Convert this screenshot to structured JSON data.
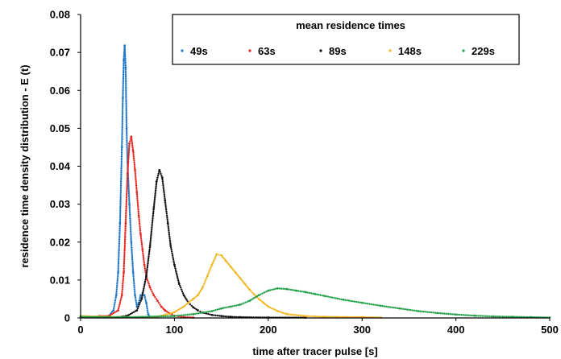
{
  "chart_data": {
    "type": "scatter",
    "title": "",
    "xlabel": "time after tracer pulse [s]",
    "ylabel": "residence time density distribution - E (t)",
    "xlim": [
      0,
      500
    ],
    "ylim": [
      0,
      0.08
    ],
    "x_ticks": [
      0,
      100,
      200,
      300,
      400,
      500
    ],
    "y_ticks": [
      0,
      0.01,
      0.02,
      0.03,
      0.04,
      0.05,
      0.06,
      0.07,
      0.08
    ],
    "x_tick_labels": [
      "0",
      "100",
      "200",
      "300",
      "400",
      "500"
    ],
    "y_tick_labels": [
      "0",
      "0.01",
      "0.02",
      "0.03",
      "0.04",
      "0.05",
      "0.06",
      "0.07",
      "0.08"
    ],
    "grid": false,
    "legend_title": "mean residence times",
    "legend_position": "top-right",
    "series": [
      {
        "name": "49s",
        "color": "#1f77c4",
        "x": [
          0,
          10,
          20,
          30,
          35,
          38,
          40,
          42,
          44,
          45,
          46,
          47,
          48,
          49,
          50,
          52,
          54,
          56,
          58,
          60,
          62,
          64,
          66,
          68,
          70,
          72,
          74
        ],
        "y": [
          0.0005,
          0.0003,
          0.0002,
          0.0005,
          0.002,
          0.006,
          0.012,
          0.025,
          0.045,
          0.058,
          0.068,
          0.0718,
          0.066,
          0.05,
          0.041,
          0.03,
          0.02,
          0.012,
          0.006,
          0.003,
          0.004,
          0.006,
          0.0065,
          0.006,
          0.004,
          0.001,
          0.0002
        ]
      },
      {
        "name": "63s",
        "color": "#e8221c",
        "x": [
          20,
          30,
          40,
          44,
          46,
          48,
          50,
          52,
          54,
          56,
          58,
          60,
          62,
          64,
          66,
          68,
          70,
          74,
          78,
          82,
          86,
          90,
          95,
          100,
          110,
          120
        ],
        "y": [
          0.0005,
          0.0005,
          0.002,
          0.006,
          0.012,
          0.025,
          0.038,
          0.046,
          0.0478,
          0.044,
          0.039,
          0.033,
          0.027,
          0.022,
          0.018,
          0.014,
          0.011,
          0.008,
          0.006,
          0.0045,
          0.003,
          0.002,
          0.0012,
          0.0006,
          0.0002,
          0.0001
        ]
      },
      {
        "name": "89s",
        "color": "#111111",
        "x": [
          40,
          50,
          60,
          65,
          70,
          74,
          78,
          81,
          84,
          87,
          90,
          93,
          96,
          100,
          105,
          110,
          115,
          120,
          125,
          130,
          140,
          150,
          160,
          170,
          200,
          240
        ],
        "y": [
          0.0002,
          0.0006,
          0.002,
          0.005,
          0.011,
          0.019,
          0.029,
          0.036,
          0.039,
          0.037,
          0.031,
          0.025,
          0.019,
          0.014,
          0.009,
          0.006,
          0.004,
          0.0028,
          0.002,
          0.0014,
          0.0008,
          0.0005,
          0.0003,
          0.0002,
          0.0001,
          0.0001
        ]
      },
      {
        "name": "148s",
        "color": "#f2b61a",
        "x": [
          0,
          50,
          80,
          100,
          110,
          115,
          120,
          125,
          130,
          135,
          140,
          145,
          150,
          155,
          160,
          165,
          170,
          175,
          180,
          185,
          190,
          195,
          200,
          210,
          220,
          240,
          260,
          300,
          320
        ],
        "y": [
          0.0005,
          0.0002,
          0.0002,
          0.0015,
          0.003,
          0.004,
          0.005,
          0.006,
          0.008,
          0.011,
          0.014,
          0.0168,
          0.0165,
          0.015,
          0.0135,
          0.012,
          0.0105,
          0.009,
          0.0075,
          0.0062,
          0.005,
          0.004,
          0.003,
          0.0018,
          0.001,
          0.0005,
          0.0003,
          0.0002,
          0.0001
        ]
      },
      {
        "name": "229s",
        "color": "#22a047",
        "x": [
          0,
          50,
          100,
          120,
          140,
          150,
          160,
          170,
          180,
          190,
          200,
          210,
          220,
          230,
          240,
          250,
          260,
          280,
          300,
          320,
          340,
          360,
          380,
          400,
          420,
          440,
          460,
          480,
          500
        ],
        "y": [
          0.0003,
          0.0002,
          0.0005,
          0.001,
          0.0018,
          0.0025,
          0.003,
          0.0035,
          0.0045,
          0.006,
          0.0072,
          0.0078,
          0.0076,
          0.0072,
          0.0068,
          0.0063,
          0.0058,
          0.0048,
          0.004,
          0.0032,
          0.0025,
          0.0018,
          0.0013,
          0.0009,
          0.0006,
          0.0004,
          0.0003,
          0.0002,
          0.0001
        ]
      }
    ]
  }
}
